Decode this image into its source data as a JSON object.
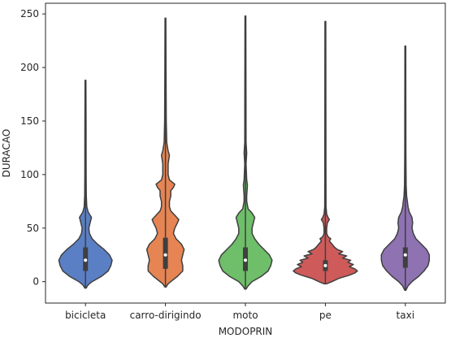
{
  "chart_data": {
    "type": "violin",
    "xlabel": "MODOPRIN",
    "ylabel": "DURACAO",
    "ylim": [
      -20,
      260
    ],
    "yticks": [
      0,
      50,
      100,
      150,
      200,
      250
    ],
    "categories": [
      "bicicleta",
      "carro-dirigindo",
      "moto",
      "pe",
      "taxi"
    ],
    "colors": [
      "#5a7fc4",
      "#e68553",
      "#6ebe6a",
      "#cf5a5a",
      "#8f72b2"
    ],
    "violins": [
      {
        "name": "bicicleta",
        "min": -6,
        "max": 188,
        "q1": 10,
        "median": 20,
        "q3": 32,
        "profile": [
          [
            -6,
            0.4
          ],
          [
            -3,
            2
          ],
          [
            0,
            5
          ],
          [
            5,
            12
          ],
          [
            10,
            17
          ],
          [
            15,
            19
          ],
          [
            20,
            20
          ],
          [
            25,
            18
          ],
          [
            30,
            14
          ],
          [
            35,
            9
          ],
          [
            40,
            5
          ],
          [
            45,
            3
          ],
          [
            50,
            2.5
          ],
          [
            55,
            3.5
          ],
          [
            60,
            4.5
          ],
          [
            65,
            2
          ],
          [
            70,
            1
          ],
          [
            80,
            0.6
          ],
          [
            100,
            0.5
          ],
          [
            150,
            0.4
          ],
          [
            188,
            0.3
          ]
        ]
      },
      {
        "name": "carro-dirigindo",
        "min": -5,
        "max": 246,
        "q1": 12,
        "median": 25,
        "q3": 41,
        "profile": [
          [
            -5,
            0.4
          ],
          [
            -2,
            2
          ],
          [
            0,
            4
          ],
          [
            5,
            9
          ],
          [
            10,
            13
          ],
          [
            15,
            13
          ],
          [
            20,
            12
          ],
          [
            25,
            13
          ],
          [
            30,
            14
          ],
          [
            35,
            12
          ],
          [
            40,
            8
          ],
          [
            45,
            6
          ],
          [
            50,
            7
          ],
          [
            55,
            9
          ],
          [
            58,
            10
          ],
          [
            62,
            7
          ],
          [
            66,
            4
          ],
          [
            70,
            3
          ],
          [
            75,
            3
          ],
          [
            80,
            4
          ],
          [
            85,
            4
          ],
          [
            88,
            6
          ],
          [
            91,
            7
          ],
          [
            95,
            3
          ],
          [
            100,
            2
          ],
          [
            110,
            2
          ],
          [
            118,
            3
          ],
          [
            122,
            2
          ],
          [
            130,
            1
          ],
          [
            150,
            0.6
          ],
          [
            200,
            0.4
          ],
          [
            246,
            0.3
          ]
        ]
      },
      {
        "name": "moto",
        "min": -7,
        "max": 248,
        "q1": 10,
        "median": 20,
        "q3": 32,
        "profile": [
          [
            -7,
            0.4
          ],
          [
            -4,
            2
          ],
          [
            0,
            5
          ],
          [
            5,
            12
          ],
          [
            10,
            17
          ],
          [
            15,
            19
          ],
          [
            20,
            20
          ],
          [
            25,
            18
          ],
          [
            30,
            14
          ],
          [
            35,
            10
          ],
          [
            40,
            7
          ],
          [
            45,
            5
          ],
          [
            50,
            5
          ],
          [
            55,
            6
          ],
          [
            60,
            7
          ],
          [
            64,
            5
          ],
          [
            68,
            2
          ],
          [
            75,
            1
          ],
          [
            80,
            1
          ],
          [
            90,
            1.5
          ],
          [
            95,
            1
          ],
          [
            110,
            0.5
          ],
          [
            120,
            1
          ],
          [
            130,
            0.5
          ],
          [
            180,
            0.4
          ],
          [
            248,
            0.3
          ]
        ]
      },
      {
        "name": "pe",
        "min": -2,
        "max": 243,
        "q1": 10,
        "median": 15,
        "q3": 20,
        "profile": [
          [
            -2,
            1
          ],
          [
            0,
            5
          ],
          [
            3,
            10
          ],
          [
            6,
            18
          ],
          [
            8,
            22
          ],
          [
            10,
            24
          ],
          [
            12,
            22
          ],
          [
            14,
            18
          ],
          [
            16,
            21
          ],
          [
            18,
            17
          ],
          [
            20,
            19
          ],
          [
            22,
            13
          ],
          [
            24,
            16
          ],
          [
            26,
            10
          ],
          [
            28,
            13
          ],
          [
            30,
            9
          ],
          [
            32,
            7
          ],
          [
            35,
            5
          ],
          [
            38,
            3
          ],
          [
            40,
            4
          ],
          [
            42,
            2
          ],
          [
            45,
            1
          ],
          [
            50,
            1
          ],
          [
            55,
            1.5
          ],
          [
            58,
            3
          ],
          [
            60,
            2
          ],
          [
            63,
            1
          ],
          [
            70,
            0.5
          ],
          [
            100,
            0.4
          ],
          [
            243,
            0.3
          ]
        ]
      },
      {
        "name": "taxi",
        "min": -8,
        "max": 220,
        "q1": 13,
        "median": 25,
        "q3": 32,
        "profile": [
          [
            -8,
            0.4
          ],
          [
            -4,
            2
          ],
          [
            0,
            5
          ],
          [
            5,
            10
          ],
          [
            10,
            14
          ],
          [
            15,
            17
          ],
          [
            20,
            18
          ],
          [
            25,
            18
          ],
          [
            30,
            16
          ],
          [
            35,
            12
          ],
          [
            40,
            8
          ],
          [
            45,
            6
          ],
          [
            50,
            5
          ],
          [
            55,
            5.5
          ],
          [
            60,
            5
          ],
          [
            65,
            3
          ],
          [
            70,
            2
          ],
          [
            75,
            1.5
          ],
          [
            80,
            1
          ],
          [
            90,
            0.6
          ],
          [
            120,
            0.4
          ],
          [
            220,
            0.3
          ]
        ]
      }
    ]
  }
}
